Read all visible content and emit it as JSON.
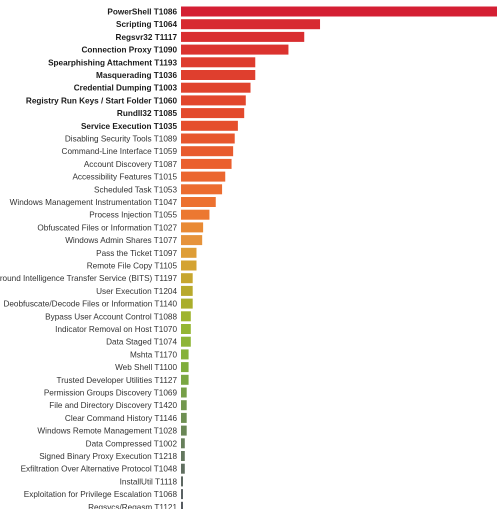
{
  "chart_data": {
    "type": "bar",
    "orientation": "horizontal",
    "title": "",
    "xlabel": "",
    "ylabel": "",
    "grid": false,
    "legend": "none",
    "xlim": [
      0,
      100
    ],
    "categories": [
      {
        "name": "PowerShell",
        "id": "T1086",
        "value": 100,
        "bold": true,
        "color": "#d41f33"
      },
      {
        "name": "Scripting",
        "id": "T1064",
        "value": 44,
        "bold": true,
        "color": "#d72a31"
      },
      {
        "name": "Regsvr32",
        "id": "T1117",
        "value": 39,
        "bold": true,
        "color": "#d92e30"
      },
      {
        "name": "Connection Proxy",
        "id": "T1090",
        "value": 34,
        "bold": true,
        "color": "#db332f"
      },
      {
        "name": "Spearphishing Attachment",
        "id": "T1193",
        "value": 23.5,
        "bold": true,
        "color": "#de3c2e"
      },
      {
        "name": "Masquerading",
        "id": "T1036",
        "value": 23.5,
        "bold": true,
        "color": "#df3f2e"
      },
      {
        "name": "Credential Dumping",
        "id": "T1003",
        "value": 22,
        "bold": true,
        "color": "#e0432d"
      },
      {
        "name": "Registry Run Keys / Start Folder",
        "id": "T1060",
        "value": 20.5,
        "bold": true,
        "color": "#e2462c"
      },
      {
        "name": "Rundll32",
        "id": "T1085",
        "value": 20,
        "bold": true,
        "color": "#e3492c"
      },
      {
        "name": "Service Execution",
        "id": "T1035",
        "value": 18,
        "bold": true,
        "color": "#e54e2c"
      },
      {
        "name": "Disabling Security Tools",
        "id": "T1089",
        "value": 17,
        "bold": false,
        "color": "#e7562d"
      },
      {
        "name": "Command-Line Interface",
        "id": "T1059",
        "value": 16.5,
        "bold": false,
        "color": "#e85b2e"
      },
      {
        "name": "Account Discovery",
        "id": "T1087",
        "value": 16,
        "bold": false,
        "color": "#ea5f2e"
      },
      {
        "name": "Accessibility Features",
        "id": "T1015",
        "value": 14,
        "bold": false,
        "color": "#eb662f"
      },
      {
        "name": "Scheduled Task",
        "id": "T1053",
        "value": 13,
        "bold": false,
        "color": "#ec6c2f"
      },
      {
        "name": "Windows Management Instrumentation",
        "id": "T1047",
        "value": 11,
        "bold": false,
        "color": "#ec7130"
      },
      {
        "name": "Process Injection",
        "id": "T1055",
        "value": 9,
        "bold": false,
        "color": "#ec7831"
      },
      {
        "name": "Obfuscated Files or Information",
        "id": "T1027",
        "value": 7,
        "bold": false,
        "color": "#e98a34"
      },
      {
        "name": "Windows Admin Shares",
        "id": "T1077",
        "value": 6.7,
        "bold": false,
        "color": "#e6933a"
      },
      {
        "name": "Pass the Ticket",
        "id": "T1097",
        "value": 4.9,
        "bold": false,
        "color": "#de9d36"
      },
      {
        "name": "Remote File Copy",
        "id": "T1105",
        "value": 4.9,
        "bold": false,
        "color": "#d4a332"
      },
      {
        "name": "Background Intelligence Transfer Service (BITS)",
        "id": "T1197",
        "value": 3.7,
        "bold": false,
        "color": "#c7a62e"
      },
      {
        "name": "User Execution",
        "id": "T1204",
        "value": 3.7,
        "bold": false,
        "color": "#b8a92c"
      },
      {
        "name": "Deobfuscate/Decode Files or Information",
        "id": "T1140",
        "value": 3.7,
        "bold": false,
        "color": "#aaae2b"
      },
      {
        "name": "Bypass User Account Control",
        "id": "T1088",
        "value": 3.1,
        "bold": false,
        "color": "#9eb42e"
      },
      {
        "name": "Indicator Removal on Host",
        "id": "T1070",
        "value": 3.1,
        "bold": false,
        "color": "#94b632"
      },
      {
        "name": "Data Staged",
        "id": "T1074",
        "value": 3.1,
        "bold": false,
        "color": "#8db536"
      },
      {
        "name": "Mshta",
        "id": "T1170",
        "value": 2.4,
        "bold": false,
        "color": "#86b23a"
      },
      {
        "name": "Web Shell",
        "id": "T1100",
        "value": 2.4,
        "bold": false,
        "color": "#80ae3d"
      },
      {
        "name": "Trusted Developer Utilities",
        "id": "T1127",
        "value": 2.4,
        "bold": false,
        "color": "#7aa742"
      },
      {
        "name": "Permission Groups Discovery",
        "id": "T1069",
        "value": 1.8,
        "bold": false,
        "color": "#769f48"
      },
      {
        "name": "File and Directory Discovery",
        "id": "T1420",
        "value": 1.8,
        "bold": false,
        "color": "#72974d"
      },
      {
        "name": "Clear Command History",
        "id": "T1146",
        "value": 1.8,
        "bold": false,
        "color": "#6e8f52"
      },
      {
        "name": "Windows Remote Management",
        "id": "T1028",
        "value": 1.8,
        "bold": false,
        "color": "#6a8756"
      },
      {
        "name": "Data Compressed",
        "id": "T1002",
        "value": 1.2,
        "bold": false,
        "color": "#667f5a"
      },
      {
        "name": "Signed Binary Proxy Execution",
        "id": "T1218",
        "value": 1.2,
        "bold": false,
        "color": "#63775e"
      },
      {
        "name": "Exfiltration Over Alternative Protocol",
        "id": "T1048",
        "value": 1.2,
        "bold": false,
        "color": "#606f60"
      },
      {
        "name": "InstallUtil",
        "id": "T1118",
        "value": 0.6,
        "bold": false,
        "color": "#5d6862"
      },
      {
        "name": "Exploitation for Privilege Escalation",
        "id": "T1068",
        "value": 0.6,
        "bold": false,
        "color": "#5a6163"
      },
      {
        "name": "Regsvcs/Regasm",
        "id": "T1121",
        "value": 0.6,
        "bold": false,
        "color": "#565a60"
      }
    ]
  }
}
